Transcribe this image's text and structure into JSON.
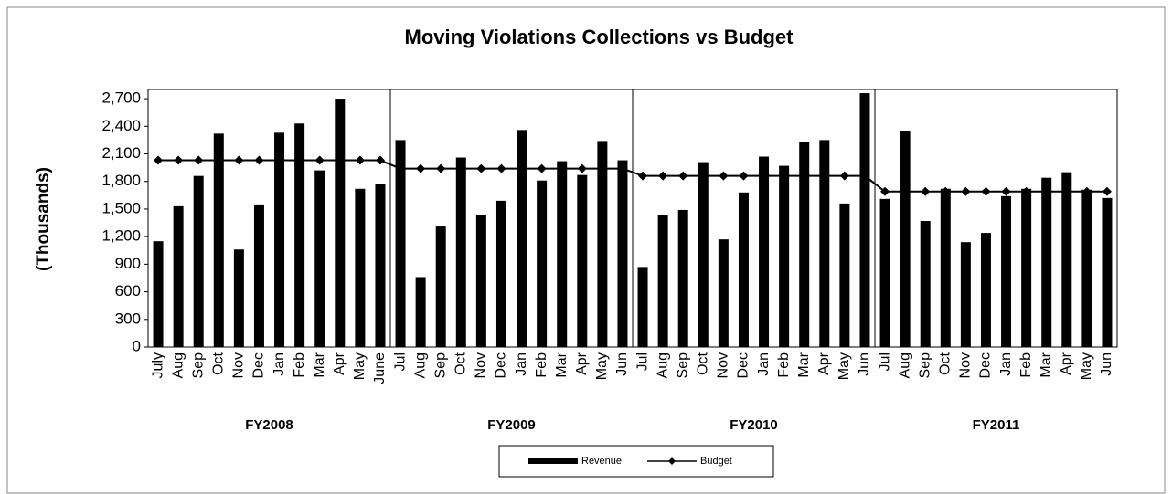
{
  "chart_data": {
    "type": "bar",
    "title": "Moving Violations Collections vs Budget",
    "y_label": "(Thousands)",
    "categories": [
      "July",
      "Aug",
      "Sep",
      "Oct",
      "Nov",
      "Dec",
      "Jan",
      "Feb",
      "Mar",
      "Apr",
      "May",
      "June",
      "Jul",
      "Aug",
      "Sep",
      "Oct",
      "Nov",
      "Dec",
      "Jan",
      "Feb",
      "Mar",
      "Apr",
      "May",
      "Jun",
      "Jul",
      "Aug",
      "Sep",
      "Oct",
      "Nov",
      "Dec",
      "Jan",
      "Feb",
      "Mar",
      "Apr",
      "May",
      "Jun",
      "Jul",
      "Aug",
      "Sep",
      "Oct",
      "Nov",
      "Dec",
      "Jan",
      "Feb",
      "Mar",
      "Apr",
      "May",
      "Jun"
    ],
    "groups": [
      "FY2008",
      "FY2009",
      "FY2010",
      "FY2011"
    ],
    "series": [
      {
        "name": "Revenue",
        "type": "bar",
        "color": "#000000",
        "values": [
          1150,
          1530,
          1860,
          2320,
          1060,
          1550,
          2330,
          2430,
          1920,
          2700,
          1720,
          1770,
          2250,
          760,
          1310,
          2060,
          1430,
          1590,
          2360,
          1810,
          2020,
          1870,
          2240,
          2030,
          870,
          1440,
          1490,
          2010,
          1170,
          1680,
          2070,
          1970,
          2230,
          2250,
          1560,
          2760,
          1610,
          2350,
          1370,
          1720,
          1140,
          1240,
          1640,
          1720,
          1840,
          1900,
          1710,
          1620
        ]
      },
      {
        "name": "Budget",
        "type": "line",
        "color": "#000000",
        "values": [
          2030,
          2030,
          2030,
          2030,
          2030,
          2030,
          2030,
          2030,
          2030,
          2030,
          2030,
          2030,
          1940,
          1940,
          1940,
          1940,
          1940,
          1940,
          1940,
          1940,
          1940,
          1940,
          1940,
          1940,
          1860,
          1860,
          1860,
          1860,
          1860,
          1860,
          1860,
          1860,
          1860,
          1860,
          1860,
          1860,
          1690,
          1690,
          1690,
          1690,
          1690,
          1690,
          1690,
          1690,
          1690,
          1690,
          1690,
          1690
        ]
      }
    ],
    "ylim": [
      0,
      2800
    ],
    "yticks": [
      0,
      300,
      600,
      900,
      {
        "value": 1200,
        "label": "1,200"
      },
      {
        "value": 1500,
        "label": "1,500"
      },
      {
        "value": 1800,
        "label": "1,800"
      },
      {
        "value": 2100,
        "label": "2,100"
      },
      {
        "value": 2400,
        "label": "2,400"
      },
      {
        "value": 2700,
        "label": "2,700"
      }
    ],
    "legend": "bottom"
  }
}
